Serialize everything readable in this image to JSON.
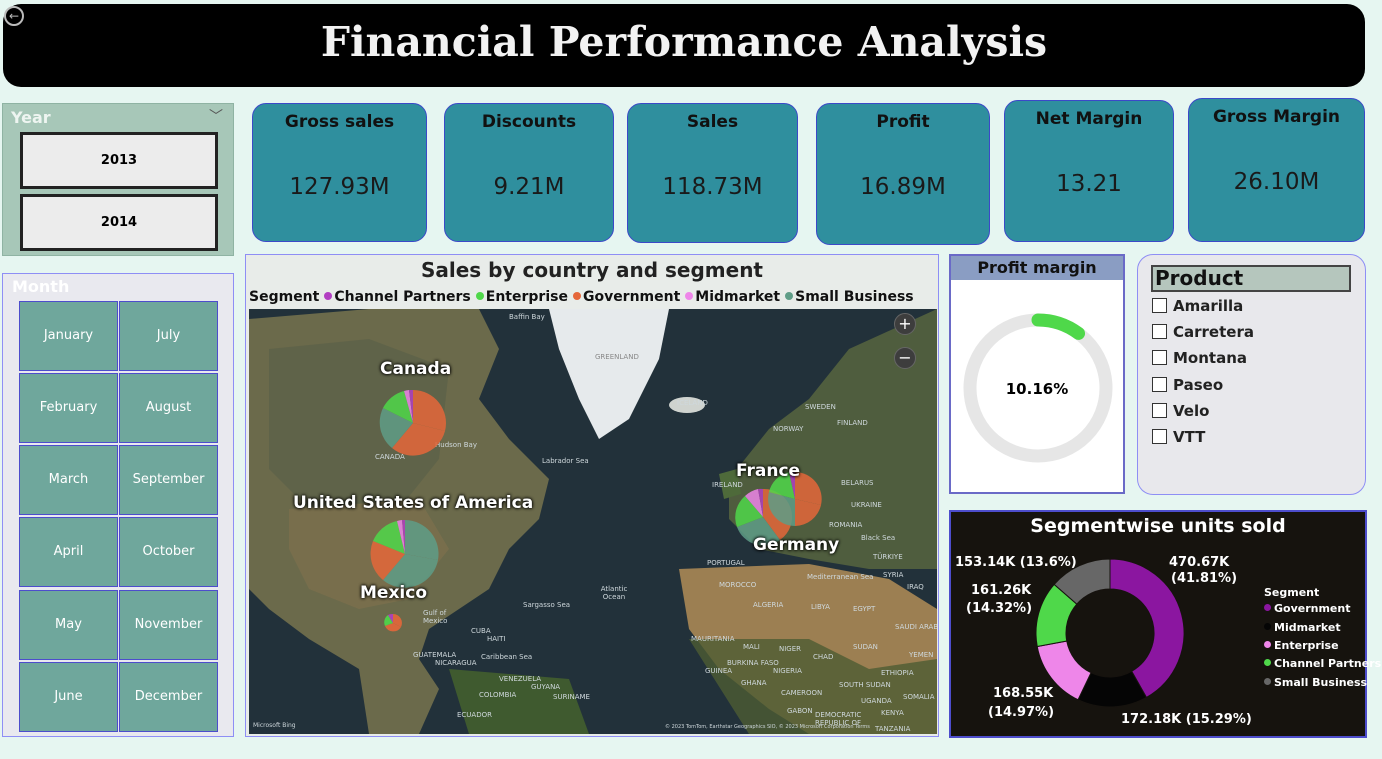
{
  "header": {
    "title": "Financial Performance Analysis"
  },
  "year_slicer": {
    "title": "Year",
    "options": [
      "2013",
      "2014"
    ]
  },
  "month_slicer": {
    "title": "Month",
    "months": [
      "January",
      "July",
      "February",
      "August",
      "March",
      "September",
      "April",
      "October",
      "May",
      "November",
      "June",
      "December"
    ]
  },
  "kpis": [
    {
      "label": "Gross sales",
      "value": "127.93M"
    },
    {
      "label": "Discounts",
      "value": "9.21M"
    },
    {
      "label": "Sales",
      "value": "118.73M"
    },
    {
      "label": "Profit",
      "value": "16.89M"
    },
    {
      "label": "Net Margin",
      "value": "13.21"
    },
    {
      "label": "Gross Margin",
      "value": "26.10M"
    }
  ],
  "map": {
    "title": "Sales by country and segment",
    "legend_title": "Segment",
    "legend": [
      {
        "name": "Channel Partners",
        "color": "#b23fc2"
      },
      {
        "name": "Enterprise",
        "color": "#4fd84a"
      },
      {
        "name": "Government",
        "color": "#e5673a"
      },
      {
        "name": "Midmarket",
        "color": "#ee86e9"
      },
      {
        "name": "Small Business",
        "color": "#5f9d87"
      }
    ],
    "countries": [
      "Canada",
      "United States of America",
      "Mexico",
      "France",
      "Germany"
    ],
    "base_labels": [
      "Baffin Bay",
      "GREENLAND",
      "ICELAND",
      "SWEDEN",
      "FINLAND",
      "NORWAY",
      "CANADA",
      "Hudson Bay",
      "Labrador Sea",
      "IRELAND",
      "BELARUS",
      "UKRAINE",
      "ROMANIA",
      "Black Sea",
      "TÜRKIYE",
      "SYRIA",
      "IRAQ",
      "PORTUGAL",
      "Mediterranean Sea",
      "MOROCCO",
      "ALGERIA",
      "LIBYA",
      "EGYPT",
      "SAUDI ARAB",
      "Atlantic Ocean",
      "Sargasso Sea",
      "Gulf of Mexico",
      "CUBA",
      "HAITI",
      "Caribbean Sea",
      "GUATEMALA",
      "NICARAGUA",
      "VENEZUELA",
      "COLOMBIA",
      "GUYANA",
      "SURINAME",
      "ECUADOR",
      "MAURITANIA",
      "MALI",
      "NIGER",
      "CHAD",
      "SUDAN",
      "YEMEN",
      "BURKINA FASO",
      "NIGERIA",
      "GUINEA",
      "GHANA",
      "CAMEROON",
      "SOUTH SUDAN",
      "ETHIOPIA",
      "SOMALIA",
      "UGANDA",
      "KENYA",
      "GABON",
      "DEMOCRATIC REPUBLIC OF",
      "TANZANIA",
      "Microsoft Bing",
      "© 2023 TomTom, Earthstar Geographics SIO, © 2023 Microsoft Corporation  Terms"
    ],
    "zoom_in": "+",
    "zoom_out": "−"
  },
  "profit_margin": {
    "title": "Profit margin",
    "value": "10.16%",
    "fraction": 0.1016,
    "track_color": "#e6e6e6",
    "fill_color": "#4fd84a"
  },
  "product_slicer": {
    "title": "Product",
    "items": [
      "Amarilla",
      "Carretera",
      "Montana",
      "Paseo",
      "Velo",
      "VTT"
    ]
  },
  "chart_data": {
    "type": "pie",
    "title": "Segmentwise units sold",
    "legend_title": "Segment",
    "categories": [
      "Government",
      "Midmarket",
      "Enterprise",
      "Channel Partners",
      "Small Business"
    ],
    "values": [
      470670,
      172180,
      168550,
      161260,
      153140
    ],
    "percent": [
      41.81,
      15.29,
      14.97,
      14.32,
      13.6
    ],
    "labels": [
      "470.67K",
      "(41.81%)",
      "172.18K (15.29%)",
      "168.55K",
      "(14.97%)",
      "161.26K",
      "(14.32%)",
      "153.14K (13.6%)"
    ],
    "colors": [
      "#8b16a0",
      "#050505",
      "#ee86e9",
      "#4fd84a",
      "#676767"
    ],
    "legend_position": "right"
  }
}
